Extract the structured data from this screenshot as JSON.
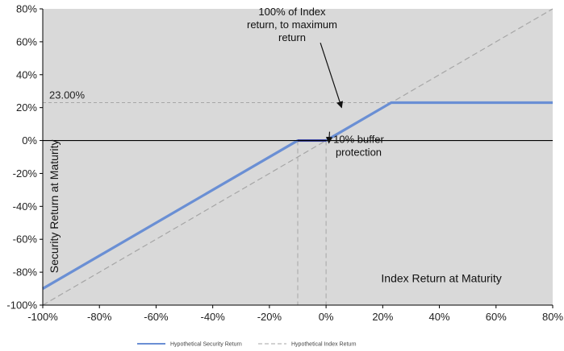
{
  "chart_data": {
    "type": "line",
    "x_axis": {
      "range": [
        -100,
        80
      ],
      "ticks": [
        -100,
        -80,
        -60,
        -40,
        -20,
        0,
        20,
        40,
        60,
        80
      ],
      "tick_labels": [
        "-100%",
        "-80%",
        "-60%",
        "-40%",
        "-20%",
        "0%",
        "20%",
        "40%",
        "60%",
        "80%"
      ],
      "label": "Index Return at Maturity"
    },
    "y_axis": {
      "range": [
        -100,
        80
      ],
      "ticks": [
        -100,
        -80,
        -60,
        -40,
        -20,
        0,
        20,
        40,
        60,
        80
      ],
      "tick_labels": [
        "-100%",
        "-80%",
        "-60%",
        "-40%",
        "-20%",
        "0%",
        "20%",
        "40%",
        "60%",
        "80%"
      ],
      "label": "Security Return at Maturity"
    },
    "series": [
      {
        "name": "Hypothetical Security Return",
        "color": "#6A8FD4",
        "style": "solid",
        "points": [
          [
            -100,
            -90
          ],
          [
            -10,
            0
          ],
          [
            0,
            0
          ],
          [
            23,
            23
          ],
          [
            80,
            23
          ]
        ]
      },
      {
        "name": "Hypothetical Index Return",
        "color": "#A6A6A6",
        "style": "dashed",
        "points": [
          [
            -100,
            -100
          ],
          [
            80,
            80
          ]
        ]
      }
    ],
    "buffer_segment": {
      "points": [
        [
          -10,
          0
        ],
        [
          0,
          0
        ]
      ],
      "color": "#3D3D9E"
    },
    "reference_lines": {
      "cap_level": 23,
      "cap_label": "23.00%",
      "buffer_x": [
        -10,
        0
      ],
      "color": "#A6A6A6"
    },
    "annotations": [
      {
        "lines": [
          "100% of Index",
          "return, to maximum",
          "return"
        ],
        "anchor": [
          -12,
          76
        ],
        "arrow_to": [
          5.5,
          20
        ]
      },
      {
        "lines": [
          "10% buffer",
          "protection"
        ],
        "anchor": [
          11.5,
          -1.5
        ],
        "arrow_to": [
          1,
          -1.5
        ]
      }
    ],
    "background": "#D9D9D9",
    "legend": {
      "position": "bottom",
      "items": [
        "Hypothetical Security Return",
        "Hypothetical Index Return"
      ]
    }
  }
}
